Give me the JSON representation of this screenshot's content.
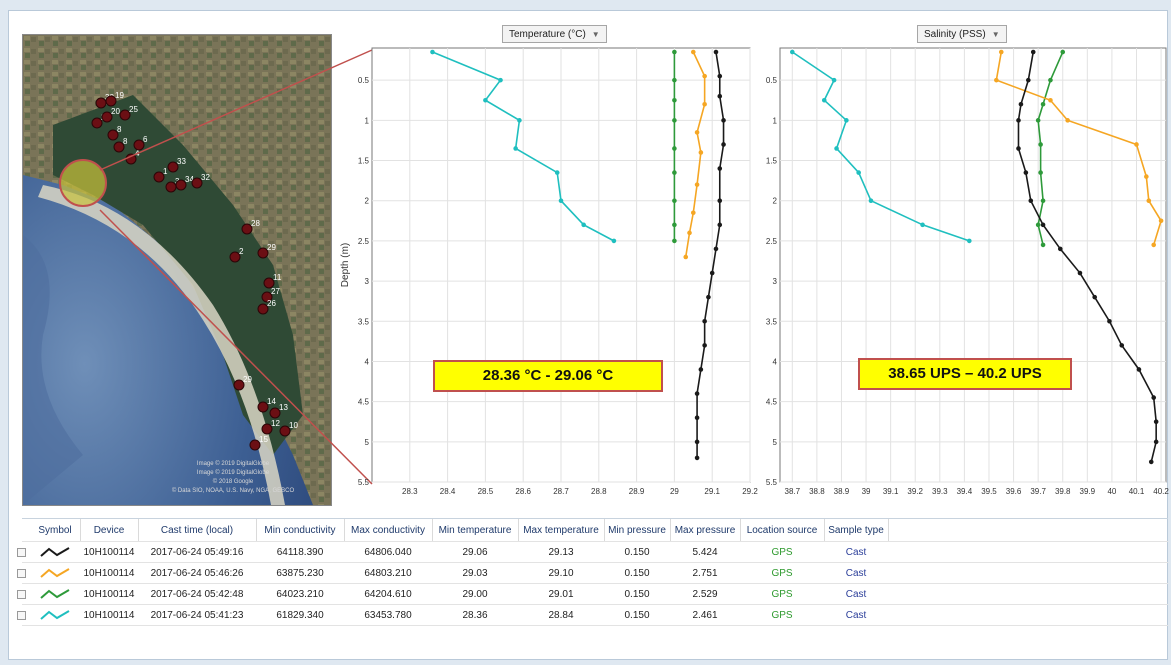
{
  "map": {
    "labels": [
      "30",
      "19",
      "21",
      "20",
      "25",
      "8",
      "8",
      "4",
      "1",
      "3",
      "34",
      "32",
      "33",
      "6",
      "28",
      "29",
      "2",
      "11",
      "27",
      "26",
      "29",
      "14",
      "13",
      "12",
      "10",
      "15"
    ],
    "attribution": [
      "Image © 2019 DigitalGlobe",
      "Image © 2019 DigitalGlobe",
      "© 2018 Google",
      "© Data SIO, NOAA, U.S. Navy, NGA, GEBCO"
    ]
  },
  "temperature_plot": {
    "selector": "Temperature (°C)",
    "range_label": "28.36 °C - 29.06 °C"
  },
  "salinity_plot": {
    "selector": "Salinity (PSS)",
    "range_label": "38.65 UPS – 40.2 UPS"
  },
  "chart_data": [
    {
      "type": "line",
      "ylabel": "Depth (m)",
      "y_reversed": true,
      "ylim": [
        0.1,
        5.5
      ],
      "xlim": [
        28.2,
        29.2
      ],
      "xticks": [
        "28.3",
        "28.4",
        "28.5",
        "28.6",
        "28.7",
        "28.8",
        "28.9",
        "29",
        "29.1",
        "29.2"
      ],
      "yticks": [
        "0.5",
        "1",
        "1.5",
        "2",
        "2.5",
        "3",
        "3.5",
        "4",
        "4.5",
        "5",
        "5.5"
      ],
      "grid": true,
      "series": [
        {
          "color": "#1fbfbf",
          "points": [
            [
              28.36,
              0.15
            ],
            [
              28.54,
              0.5
            ],
            [
              28.5,
              0.75
            ],
            [
              28.59,
              1.0
            ],
            [
              28.58,
              1.35
            ],
            [
              28.69,
              1.65
            ],
            [
              28.7,
              2.0
            ],
            [
              28.76,
              2.3
            ],
            [
              28.84,
              2.5
            ]
          ]
        },
        {
          "color": "#2e9a3a",
          "points": [
            [
              29.0,
              0.15
            ],
            [
              29.0,
              0.5
            ],
            [
              29.0,
              0.75
            ],
            [
              29.0,
              1.0
            ],
            [
              29.0,
              1.35
            ],
            [
              29.0,
              1.65
            ],
            [
              29.0,
              2.0
            ],
            [
              29.0,
              2.3
            ],
            [
              29.0,
              2.5
            ]
          ]
        },
        {
          "color": "#f5a623",
          "points": [
            [
              29.05,
              0.15
            ],
            [
              29.08,
              0.45
            ],
            [
              29.08,
              0.8
            ],
            [
              29.06,
              1.15
            ],
            [
              29.07,
              1.4
            ],
            [
              29.06,
              1.8
            ],
            [
              29.05,
              2.15
            ],
            [
              29.04,
              2.4
            ],
            [
              29.03,
              2.7
            ]
          ]
        },
        {
          "color": "#1a1a1a",
          "points": [
            [
              29.11,
              0.15
            ],
            [
              29.12,
              0.45
            ],
            [
              29.12,
              0.7
            ],
            [
              29.13,
              1.0
            ],
            [
              29.13,
              1.3
            ],
            [
              29.12,
              1.6
            ],
            [
              29.12,
              2.0
            ],
            [
              29.12,
              2.3
            ],
            [
              29.11,
              2.6
            ],
            [
              29.1,
              2.9
            ],
            [
              29.09,
              3.2
            ],
            [
              29.08,
              3.5
            ],
            [
              29.08,
              3.8
            ],
            [
              29.07,
              4.1
            ],
            [
              29.06,
              4.4
            ],
            [
              29.06,
              4.7
            ],
            [
              29.06,
              5.0
            ],
            [
              29.06,
              5.2
            ]
          ]
        }
      ]
    },
    {
      "type": "line",
      "ylim": [
        0.1,
        5.5
      ],
      "y_reversed": true,
      "xlim": [
        38.65,
        40.22
      ],
      "xticks": [
        "38.7",
        "38.8",
        "38.9",
        "39",
        "39.1",
        "39.2",
        "39.3",
        "39.4",
        "39.5",
        "39.6",
        "39.7",
        "39.8",
        "39.9",
        "40",
        "40.1",
        "40.2"
      ],
      "yticks": [
        "0.5",
        "1",
        "1.5",
        "2",
        "2.5",
        "3",
        "3.5",
        "4",
        "4.5",
        "5",
        "5.5"
      ],
      "grid": true,
      "series": [
        {
          "color": "#1fbfbf",
          "points": [
            [
              38.7,
              0.15
            ],
            [
              38.87,
              0.5
            ],
            [
              38.83,
              0.75
            ],
            [
              38.92,
              1.0
            ],
            [
              38.88,
              1.35
            ],
            [
              38.97,
              1.65
            ],
            [
              39.02,
              2.0
            ],
            [
              39.23,
              2.3
            ],
            [
              39.42,
              2.5
            ]
          ]
        },
        {
          "color": "#2e9a3a",
          "points": [
            [
              39.8,
              0.15
            ],
            [
              39.75,
              0.5
            ],
            [
              39.72,
              0.8
            ],
            [
              39.7,
              1.0
            ],
            [
              39.71,
              1.3
            ],
            [
              39.71,
              1.65
            ],
            [
              39.72,
              2.0
            ],
            [
              39.7,
              2.3
            ],
            [
              39.72,
              2.55
            ]
          ]
        },
        {
          "color": "#f5a623",
          "points": [
            [
              39.55,
              0.15
            ],
            [
              39.53,
              0.5
            ],
            [
              39.75,
              0.75
            ],
            [
              39.82,
              1.0
            ],
            [
              40.1,
              1.3
            ],
            [
              40.14,
              1.7
            ],
            [
              40.15,
              2.0
            ],
            [
              40.2,
              2.25
            ],
            [
              40.17,
              2.55
            ]
          ]
        },
        {
          "color": "#1a1a1a",
          "points": [
            [
              39.68,
              0.15
            ],
            [
              39.66,
              0.5
            ],
            [
              39.63,
              0.8
            ],
            [
              39.62,
              1.0
            ],
            [
              39.62,
              1.35
            ],
            [
              39.65,
              1.65
            ],
            [
              39.67,
              2.0
            ],
            [
              39.72,
              2.3
            ],
            [
              39.79,
              2.6
            ],
            [
              39.87,
              2.9
            ],
            [
              39.93,
              3.2
            ],
            [
              39.99,
              3.5
            ],
            [
              40.04,
              3.8
            ],
            [
              40.11,
              4.1
            ],
            [
              40.17,
              4.45
            ],
            [
              40.18,
              4.75
            ],
            [
              40.18,
              5.0
            ],
            [
              40.16,
              5.25
            ]
          ]
        }
      ]
    }
  ],
  "table": {
    "headers": [
      "Symbol",
      "Device",
      "Cast time (local)",
      "Min conductivity",
      "Max conductivity",
      "Min temperature",
      "Max temperature",
      "Min pressure",
      "Max pressure",
      "Location source",
      "Sample type"
    ],
    "rows": [
      {
        "color": "#1a1a1a",
        "device": "10H100114",
        "time": "2017-06-24 05:49:16",
        "min_cond": "64118.390",
        "max_cond": "64806.040",
        "min_temp": "29.06",
        "max_temp": "29.13",
        "min_pres": "0.150",
        "max_pres": "5.424",
        "source": "GPS",
        "type": "Cast"
      },
      {
        "color": "#f5a623",
        "device": "10H100114",
        "time": "2017-06-24 05:46:26",
        "min_cond": "63875.230",
        "max_cond": "64803.210",
        "min_temp": "29.03",
        "max_temp": "29.10",
        "min_pres": "0.150",
        "max_pres": "2.751",
        "source": "GPS",
        "type": "Cast"
      },
      {
        "color": "#2e9a3a",
        "device": "10H100114",
        "time": "2017-06-24 05:42:48",
        "min_cond": "64023.210",
        "max_cond": "64204.610",
        "min_temp": "29.00",
        "max_temp": "29.01",
        "min_pres": "0.150",
        "max_pres": "2.529",
        "source": "GPS",
        "type": "Cast"
      },
      {
        "color": "#1fbfbf",
        "device": "10H100114",
        "time": "2017-06-24 05:41:23",
        "min_cond": "61829.340",
        "max_cond": "63453.780",
        "min_temp": "28.36",
        "max_temp": "28.84",
        "min_pres": "0.150",
        "max_pres": "2.461",
        "source": "GPS",
        "type": "Cast"
      }
    ]
  }
}
